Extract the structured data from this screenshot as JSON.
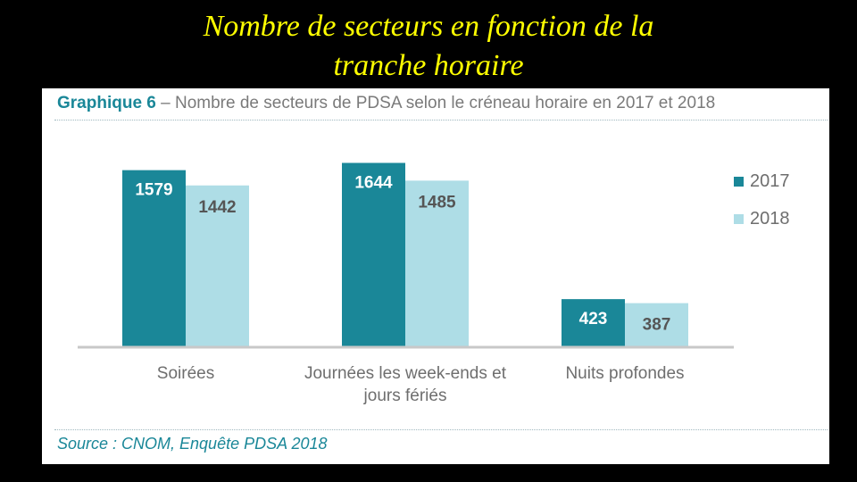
{
  "slide": {
    "title_line1": "Nombre de secteurs en fonction de la",
    "title_line2": "tranche horaire"
  },
  "figure": {
    "label": "Graphique 6",
    "title_rest": " – Nombre de secteurs de PDSA selon le créneau horaire en 2017 et 2018",
    "source": "Source : CNOM, Enquête PDSA 2018"
  },
  "colors": {
    "title": "#ffff00",
    "series_2017": "#1a8798",
    "series_2018": "#aedde6"
  },
  "chart_data": {
    "type": "bar",
    "categories": [
      "Soirées",
      "Journées les week-ends et jours fériés",
      "Nuits profondes"
    ],
    "category_lines": [
      [
        "Soirées"
      ],
      [
        "Journées les week-ends et",
        "jours fériés"
      ],
      [
        "Nuits profondes"
      ]
    ],
    "series": [
      {
        "name": "2017",
        "values": [
          1579,
          1644,
          423
        ],
        "color": "#1a8798"
      },
      {
        "name": "2018",
        "values": [
          1442,
          1485,
          387
        ],
        "color": "#aedde6"
      }
    ],
    "ylim": [
      0,
      1800
    ],
    "grid": false,
    "legend_position": "right"
  }
}
